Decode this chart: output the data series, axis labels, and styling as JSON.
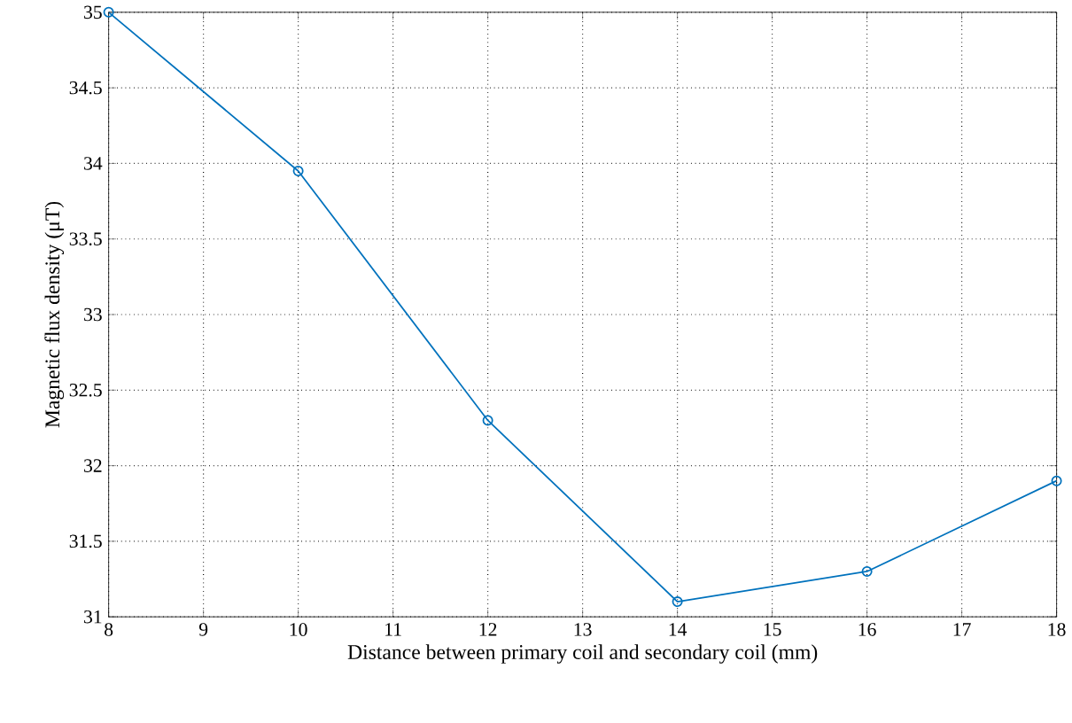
{
  "chart_data": {
    "type": "line",
    "xlabel": "Distance between primary coil and secondary coil (mm)",
    "ylabel": "Magnetic flux density (μT)",
    "x": [
      8,
      10,
      12,
      14,
      16,
      18
    ],
    "values": [
      35,
      33.95,
      32.3,
      31.1,
      31.3,
      31.9
    ],
    "color": "#0072bd",
    "marker": "circle",
    "line_style": "solid",
    "grid": true,
    "xlim": [
      8,
      18
    ],
    "ylim": [
      31,
      35
    ],
    "xticks": [
      8,
      9,
      10,
      11,
      12,
      13,
      14,
      15,
      16,
      17,
      18
    ],
    "yticks": [
      31,
      31.5,
      32,
      32.5,
      33,
      33.5,
      34,
      34.5,
      35
    ]
  }
}
